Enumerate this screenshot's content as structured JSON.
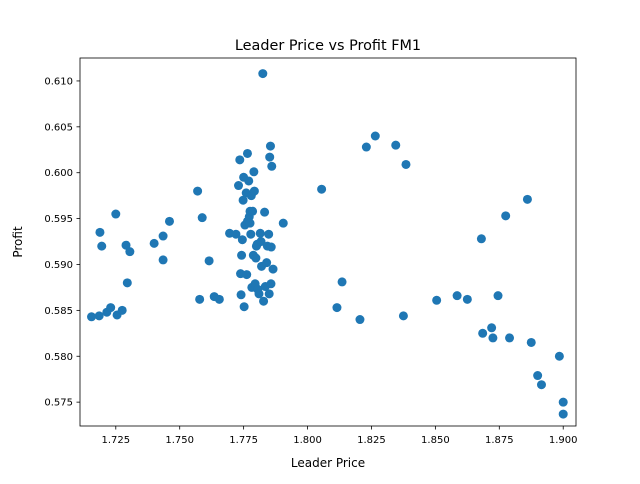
{
  "chart_data": {
    "type": "scatter",
    "title": "Leader Price vs Profit FM1",
    "xlabel": "Leader Price",
    "ylabel": "Profit",
    "xlim": [
      1.711,
      1.905
    ],
    "ylim": [
      0.5724,
      0.6125
    ],
    "xticks": [
      1.725,
      1.75,
      1.775,
      1.8,
      1.825,
      1.85,
      1.875,
      1.9
    ],
    "xtick_labels": [
      "1.725",
      "1.750",
      "1.775",
      "1.800",
      "1.825",
      "1.850",
      "1.875",
      "1.900"
    ],
    "yticks": [
      0.575,
      0.58,
      0.585,
      0.59,
      0.595,
      0.6,
      0.605,
      0.61
    ],
    "ytick_labels": [
      "0.575",
      "0.580",
      "0.585",
      "0.590",
      "0.595",
      "0.600",
      "0.605",
      "0.610"
    ],
    "grid": false,
    "marker_color": "#1f77b4",
    "points": [
      [
        1.7155,
        0.5843
      ],
      [
        1.7185,
        0.5844
      ],
      [
        1.7188,
        0.5935
      ],
      [
        1.7195,
        0.592
      ],
      [
        1.7215,
        0.5848
      ],
      [
        1.723,
        0.5853
      ],
      [
        1.725,
        0.5955
      ],
      [
        1.7255,
        0.5845
      ],
      [
        1.7275,
        0.585
      ],
      [
        1.729,
        0.5921
      ],
      [
        1.7295,
        0.588
      ],
      [
        1.7305,
        0.5914
      ],
      [
        1.74,
        0.5923
      ],
      [
        1.7435,
        0.5931
      ],
      [
        1.7435,
        0.5905
      ],
      [
        1.746,
        0.5947
      ],
      [
        1.757,
        0.598
      ],
      [
        1.7578,
        0.5862
      ],
      [
        1.7588,
        0.5951
      ],
      [
        1.7615,
        0.5904
      ],
      [
        1.7635,
        0.5865
      ],
      [
        1.7655,
        0.5862
      ],
      [
        1.7695,
        0.5934
      ],
      [
        1.772,
        0.5933
      ],
      [
        1.773,
        0.5986
      ],
      [
        1.7735,
        0.6014
      ],
      [
        1.7738,
        0.589
      ],
      [
        1.774,
        0.5867
      ],
      [
        1.7742,
        0.591
      ],
      [
        1.7745,
        0.5927
      ],
      [
        1.7748,
        0.597
      ],
      [
        1.775,
        0.5995
      ],
      [
        1.7752,
        0.5854
      ],
      [
        1.7755,
        0.5943
      ],
      [
        1.776,
        0.5978
      ],
      [
        1.7762,
        0.5889
      ],
      [
        1.7765,
        0.6021
      ],
      [
        1.7765,
        0.5947
      ],
      [
        1.777,
        0.5991
      ],
      [
        1.7772,
        0.5952
      ],
      [
        1.7775,
        0.5958
      ],
      [
        1.7775,
        0.5945
      ],
      [
        1.7778,
        0.5933
      ],
      [
        1.778,
        0.5975
      ],
      [
        1.7782,
        0.5875
      ],
      [
        1.7785,
        0.5958
      ],
      [
        1.7788,
        0.591
      ],
      [
        1.779,
        0.6001
      ],
      [
        1.7792,
        0.598
      ],
      [
        1.7795,
        0.5879
      ],
      [
        1.7798,
        0.5907
      ],
      [
        1.78,
        0.592
      ],
      [
        1.7803,
        0.5922
      ],
      [
        1.7805,
        0.5873
      ],
      [
        1.781,
        0.5868
      ],
      [
        1.7815,
        0.5934
      ],
      [
        1.7818,
        0.5925
      ],
      [
        1.782,
        0.5898
      ],
      [
        1.7825,
        0.6108
      ],
      [
        1.7828,
        0.586
      ],
      [
        1.7832,
        0.5957
      ],
      [
        1.7835,
        0.5876
      ],
      [
        1.784,
        0.5902
      ],
      [
        1.7843,
        0.592
      ],
      [
        1.7848,
        0.5933
      ],
      [
        1.785,
        0.5868
      ],
      [
        1.7852,
        0.6017
      ],
      [
        1.7855,
        0.6029
      ],
      [
        1.7857,
        0.5879
      ],
      [
        1.7858,
        0.5919
      ],
      [
        1.786,
        0.6007
      ],
      [
        1.7865,
        0.5895
      ],
      [
        1.7905,
        0.5945
      ],
      [
        1.8055,
        0.5982
      ],
      [
        1.8115,
        0.5853
      ],
      [
        1.8135,
        0.5881
      ],
      [
        1.8205,
        0.584
      ],
      [
        1.823,
        0.6028
      ],
      [
        1.8265,
        0.604
      ],
      [
        1.8345,
        0.603
      ],
      [
        1.8375,
        0.5844
      ],
      [
        1.8385,
        0.6009
      ],
      [
        1.8505,
        0.5861
      ],
      [
        1.8585,
        0.5866
      ],
      [
        1.8625,
        0.5862
      ],
      [
        1.868,
        0.5928
      ],
      [
        1.8685,
        0.5825
      ],
      [
        1.872,
        0.5831
      ],
      [
        1.8725,
        0.582
      ],
      [
        1.8745,
        0.5866
      ],
      [
        1.8775,
        0.5953
      ],
      [
        1.879,
        0.582
      ],
      [
        1.886,
        0.5971
      ],
      [
        1.8875,
        0.5815
      ],
      [
        1.89,
        0.5779
      ],
      [
        1.8915,
        0.5769
      ],
      [
        1.8985,
        0.58
      ],
      [
        1.9,
        0.575
      ],
      [
        1.9,
        0.5737
      ]
    ]
  }
}
